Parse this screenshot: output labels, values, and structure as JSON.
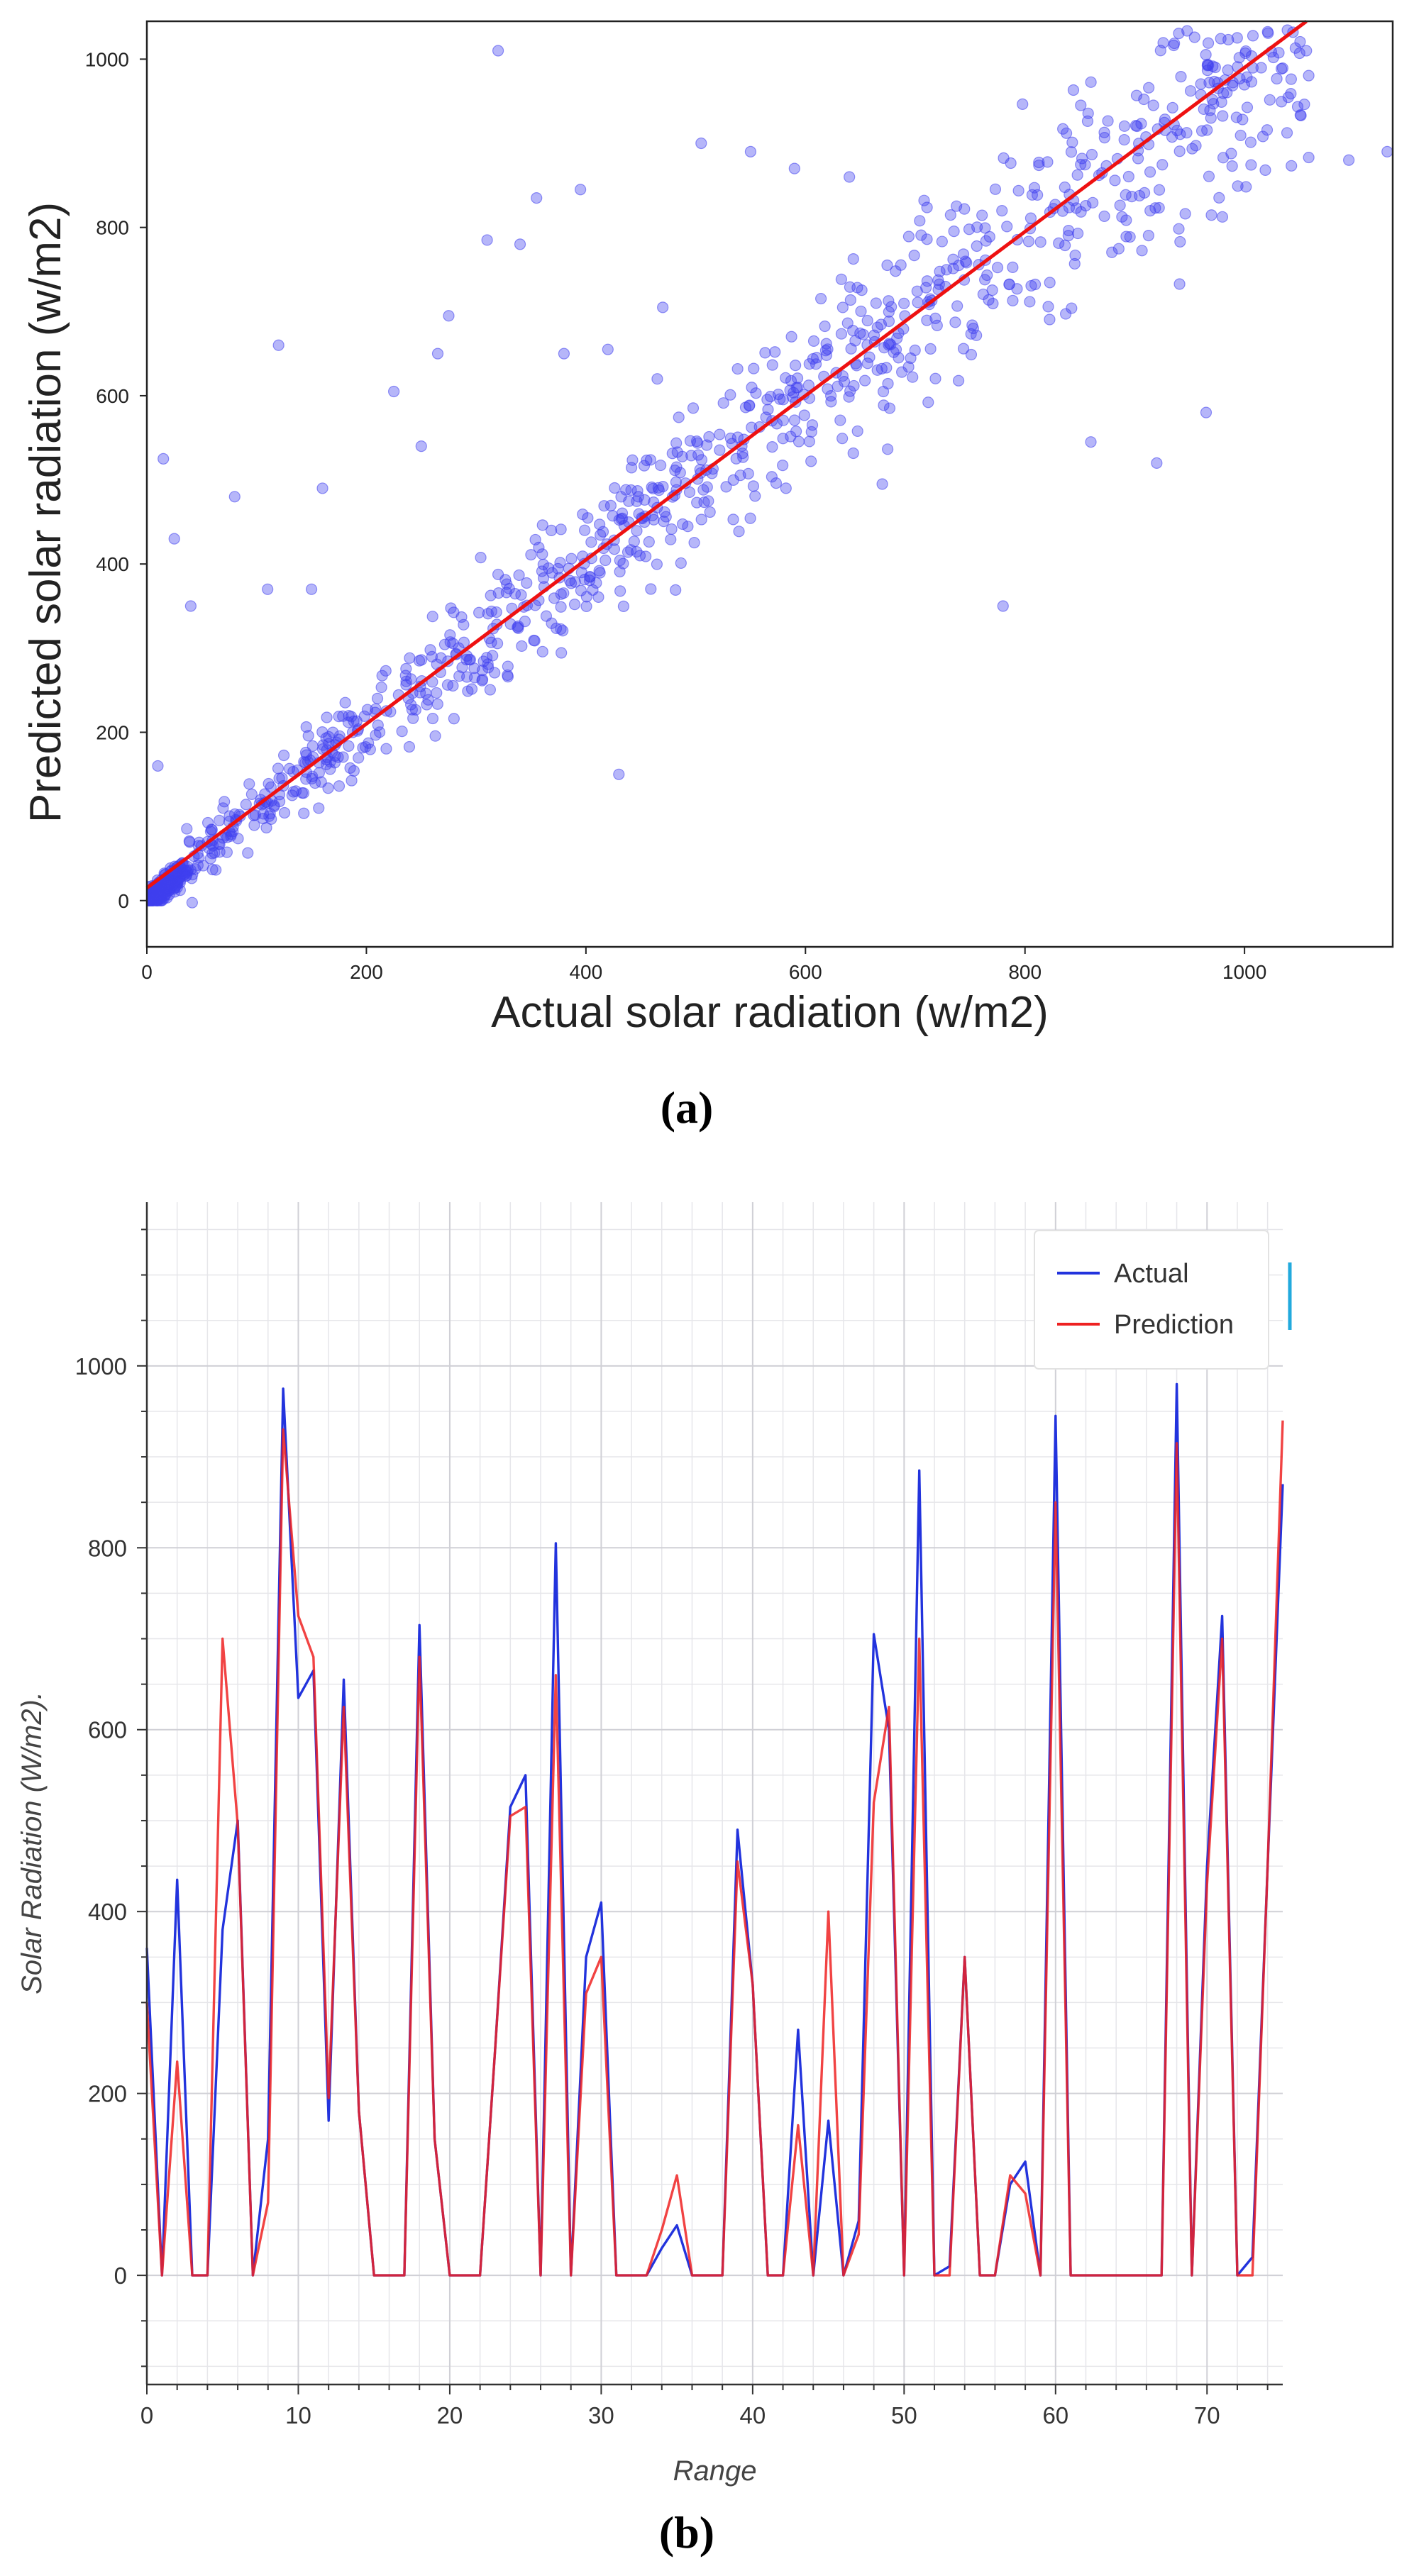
{
  "panel_a_label": "(a)",
  "panel_b_label": "(b)",
  "chart_data": [
    {
      "type": "scatter",
      "title": "",
      "xlabel": "Actual solar radiation (w/m2)",
      "ylabel": "Predicted solar radiation (w/m2)",
      "xlim": [
        0,
        1135
      ],
      "ylim": [
        -55,
        1045
      ],
      "xticks": [
        0,
        200,
        400,
        600,
        800,
        1000
      ],
      "yticks": [
        0,
        200,
        400,
        600,
        800,
        1000
      ],
      "point_color": "#4040ee",
      "fit_color": "#ee1111",
      "fit_line": {
        "slope": 0.975,
        "intercept": 15
      },
      "outliers": [
        [
          320,
          1010
        ],
        [
          15,
          525
        ],
        [
          120,
          660
        ],
        [
          225,
          605
        ],
        [
          265,
          650
        ],
        [
          275,
          695
        ],
        [
          395,
          845
        ],
        [
          355,
          835
        ],
        [
          340,
          780
        ],
        [
          310,
          785
        ],
        [
          420,
          655
        ],
        [
          470,
          705
        ],
        [
          465,
          620
        ],
        [
          430,
          150
        ],
        [
          505,
          900
        ],
        [
          550,
          890
        ],
        [
          590,
          870
        ],
        [
          640,
          860
        ],
        [
          780,
          350
        ],
        [
          965,
          580
        ],
        [
          1095,
          880
        ],
        [
          1130,
          890
        ],
        [
          40,
          350
        ],
        [
          80,
          480
        ],
        [
          110,
          370
        ],
        [
          150,
          370
        ],
        [
          25,
          430
        ],
        [
          160,
          490
        ],
        [
          250,
          540
        ],
        [
          380,
          650
        ],
        [
          920,
          520
        ],
        [
          860,
          545
        ],
        [
          670,
          495
        ],
        [
          10,
          160
        ]
      ],
      "grid": false,
      "legend": "none"
    },
    {
      "type": "line",
      "title": "",
      "xlabel": "Range",
      "ylabel": "Solar Radiation (W/m2).",
      "xlim": [
        0,
        75
      ],
      "ylim": [
        -120,
        1180
      ],
      "xticks": [
        0,
        10,
        20,
        30,
        40,
        50,
        60,
        70
      ],
      "yticks": [
        0,
        200,
        400,
        600,
        800,
        1000
      ],
      "grid": true,
      "legend": "top-right",
      "x": [
        0,
        1,
        2,
        3,
        4,
        5,
        6,
        7,
        8,
        9,
        10,
        11,
        12,
        13,
        14,
        15,
        16,
        17,
        18,
        19,
        20,
        21,
        22,
        23,
        24,
        25,
        26,
        27,
        28,
        29,
        30,
        31,
        32,
        33,
        34,
        35,
        36,
        37,
        38,
        39,
        40,
        41,
        42,
        43,
        44,
        45,
        46,
        47,
        48,
        49,
        50,
        51,
        52,
        53,
        54,
        55,
        56,
        57,
        58,
        59,
        60,
        61,
        62,
        63,
        64,
        65,
        66,
        67,
        68,
        69,
        70,
        71,
        72,
        73,
        74,
        75
      ],
      "series": [
        {
          "name": "Actual",
          "color": "#2233dd",
          "values": [
            360,
            0,
            435,
            0,
            0,
            380,
            500,
            0,
            150,
            975,
            635,
            665,
            170,
            655,
            180,
            0,
            0,
            0,
            715,
            150,
            0,
            0,
            0,
            250,
            515,
            550,
            0,
            805,
            0,
            350,
            410,
            0,
            0,
            0,
            30,
            55,
            0,
            0,
            0,
            490,
            320,
            0,
            0,
            270,
            0,
            170,
            0,
            60,
            705,
            600,
            0,
            885,
            0,
            10,
            350,
            0,
            0,
            100,
            125,
            0,
            945,
            0,
            0,
            0,
            0,
            0,
            0,
            0,
            980,
            0,
            450,
            725,
            0,
            20,
            450,
            870
          ]
        },
        {
          "name": "Prediction",
          "color": "#ee2222",
          "values": [
            300,
            0,
            235,
            0,
            0,
            700,
            495,
            0,
            80,
            930,
            725,
            680,
            195,
            625,
            180,
            0,
            0,
            0,
            680,
            150,
            0,
            0,
            0,
            250,
            505,
            515,
            0,
            660,
            0,
            310,
            350,
            0,
            0,
            0,
            50,
            110,
            0,
            0,
            0,
            455,
            320,
            0,
            0,
            165,
            0,
            400,
            0,
            45,
            520,
            625,
            0,
            700,
            0,
            0,
            350,
            0,
            0,
            110,
            90,
            0,
            850,
            0,
            0,
            0,
            0,
            0,
            0,
            0,
            915,
            0,
            430,
            700,
            0,
            0,
            450,
            940
          ]
        }
      ]
    }
  ]
}
